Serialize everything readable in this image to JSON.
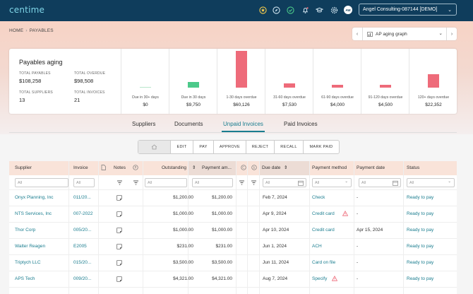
{
  "app": {
    "logo": "centime",
    "company": "Angel Consulting-087144 [DEMO]",
    "user_initials": "AW"
  },
  "topbar_icons": [
    "star-badge-icon",
    "compass-icon",
    "check-badge-icon",
    "bell-icon",
    "graduation-cap-icon",
    "gear-icon"
  ],
  "breadcrumb": {
    "home": "HOME",
    "current": "PAYABLES"
  },
  "graph_selector": {
    "label": "AP aging graph"
  },
  "aging": {
    "title": "Payables aging",
    "total_payables_label": "TOTAL PAYABLES",
    "total_payables": "$108,258",
    "total_overdue_label": "TOTAL OVERDUE",
    "total_overdue": "$98,508",
    "total_suppliers_label": "TOTAL SUPPLIERS",
    "total_suppliers": "13",
    "total_invoices_label": "TOTAL INVOICES",
    "total_invoices": "21",
    "colors": {
      "due": "#4cc98a",
      "overdue": "#ee6b7a",
      "future": "#b8e6cb"
    },
    "buckets": [
      {
        "label": "Due in 30+ days",
        "amount": "$0",
        "value": 0,
        "kind": "future"
      },
      {
        "label": "Due in 30 days",
        "amount": "$9,750",
        "value": 9750,
        "kind": "due"
      },
      {
        "label": "1-30 days overdue",
        "amount": "$60,126",
        "value": 60126,
        "kind": "overdue"
      },
      {
        "label": "31-60 days overdue",
        "amount": "$7,530",
        "value": 7530,
        "kind": "overdue"
      },
      {
        "label": "61-90 days overdue",
        "amount": "$4,000",
        "value": 4000,
        "kind": "overdue"
      },
      {
        "label": "91-120 days overdue",
        "amount": "$4,500",
        "value": 4500,
        "kind": "overdue"
      },
      {
        "label": "120+ days overdue",
        "amount": "$22,352",
        "value": 22352,
        "kind": "overdue"
      }
    ]
  },
  "tabs": [
    "Suppliers",
    "Documents",
    "Unpaid Invoices",
    "Paid Invoices"
  ],
  "active_tab": "Unpaid Invoices",
  "actions": [
    "EDIT",
    "PAY",
    "APPROVE",
    "REJECT",
    "RECALL",
    "MARK PAID"
  ],
  "table": {
    "headers": {
      "supplier": "Supplier",
      "invoice": "Invoice",
      "notes": "Notes",
      "outstanding": "Outstanding",
      "payment_amount": "Payment am...",
      "due_date": "Due date",
      "payment_method": "Payment method",
      "payment_date": "Payment date",
      "status": "Status"
    },
    "filter_placeholder": "All",
    "rows": [
      {
        "supplier": "Onyx Planning, Inc",
        "invoice": "011/20...",
        "outstanding": "$1,200.00",
        "payment": "$1,200.00",
        "due": "Feb 7, 2024",
        "method": "Check",
        "method_warn": false,
        "pay_date": "-",
        "status": "Ready to pay"
      },
      {
        "supplier": "NTS Services, Inc",
        "invoice": "007-2022",
        "outstanding": "$1,000.00",
        "payment": "$1,000.00",
        "due": "Apr 9, 2024",
        "method": "Credit card",
        "method_warn": true,
        "pay_date": "-",
        "status": "Ready to pay"
      },
      {
        "supplier": "Thor Corp",
        "invoice": "005/20...",
        "outstanding": "$1,000.00",
        "payment": "$1,000.00",
        "due": "Apr 10, 2024",
        "method": "Credit card",
        "method_warn": false,
        "pay_date": "Apr 15, 2024",
        "status": "Ready to pay"
      },
      {
        "supplier": "Walter Reagen",
        "invoice": "E2005",
        "outstanding": "$231.00",
        "payment": "$231.00",
        "due": "Jun 1, 2024",
        "method": "ACH",
        "method_warn": false,
        "pay_date": "-",
        "status": "Ready to pay"
      },
      {
        "supplier": "Triptych LLC",
        "invoice": "015/20...",
        "outstanding": "$3,500.00",
        "payment": "$3,500.00",
        "due": "Jun 11, 2024",
        "method": "Card on file",
        "method_warn": false,
        "pay_date": "-",
        "status": "Ready to pay"
      },
      {
        "supplier": "APS Tech",
        "invoice": "009/20...",
        "outstanding": "$4,321.00",
        "payment": "$4,321.00",
        "due": "Aug 7, 2024",
        "method": "Specify",
        "method_warn": true,
        "pay_date": "-",
        "status": "Ready to pay"
      }
    ]
  }
}
